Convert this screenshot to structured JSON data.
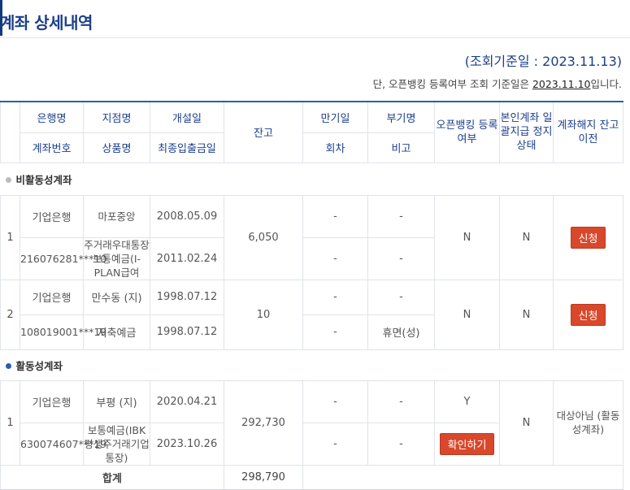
{
  "page": {
    "title": "계좌 상세내역",
    "base_date": "(조회기준일 : 2023.11.13)",
    "note_prefix": "단, 오픈뱅킹 등록여부 조회 기준일은 ",
    "note_date": "2023.11.10",
    "note_suffix": "입니다."
  },
  "header": {
    "bank": "은행명",
    "account_no": "계좌번호",
    "branch": "지점명",
    "product": "상품명",
    "open_date": "개설일",
    "last_txn_date": "최종입출금일",
    "balance": "잔고",
    "maturity": "만기일",
    "installment": "회차",
    "auxiliary": "부기명",
    "remarks": "비고",
    "openbanking": "오픈뱅킹 등록여부",
    "stop_status": "본인계좌 일괄지급 정지상태",
    "closing": "계좌해지 잔고이전"
  },
  "sections": {
    "dormant": "비활동성계좌",
    "active": "활동성계좌"
  },
  "rows": [
    {
      "no": "1",
      "bank": "기업은행",
      "account_no": "216076281***10",
      "branch": "마포중앙",
      "product": "주거래우대통장보통예금(I-PLAN급여",
      "open_date": "2008.05.09",
      "last_txn_date": "2011.02.24",
      "balance": "6,050",
      "maturity": "-",
      "installment": "-",
      "auxiliary": "-",
      "remarks": "-",
      "openbanking": "N",
      "stop_status": "N",
      "action": "신청"
    },
    {
      "no": "2",
      "bank": "기업은행",
      "account_no": "108019001***19",
      "branch": "만수동 (지)",
      "product": "저축예금",
      "open_date": "1998.07.12",
      "last_txn_date": "1998.07.12",
      "balance": "10",
      "maturity": "-",
      "installment": "-",
      "auxiliary": "-",
      "remarks": "휴면(성)",
      "openbanking": "N",
      "stop_status": "N",
      "action": "신청"
    },
    {
      "no": "1",
      "bank": "기업은행",
      "account_no": "630074607***19",
      "branch": "부평 (지)",
      "product": "보통예금(IBK평생주거래기업통장)",
      "open_date": "2020.04.21",
      "last_txn_date": "2023.10.26",
      "balance": "292,730",
      "maturity": "-",
      "installment": "-",
      "auxiliary": "-",
      "remarks": "-",
      "openbanking": "Y",
      "openbanking_button": "확인하기",
      "stop_status": "N",
      "closing_text": "대상아님 (활동성계좌)"
    }
  ],
  "total": {
    "label": "합계",
    "value": "298,790"
  },
  "colors": {
    "title": "#1b3f8b",
    "accent_line": "#2a5cb8",
    "button": "#d9482b",
    "dashed": "#9fc0dc"
  }
}
